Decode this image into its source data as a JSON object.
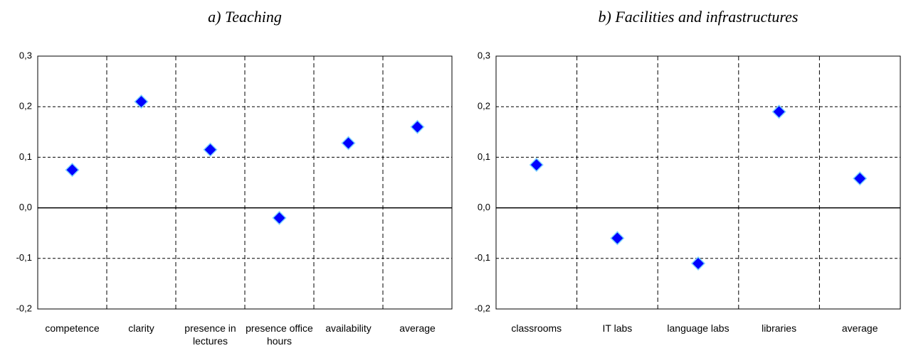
{
  "chart_data": [
    {
      "type": "scatter",
      "title": "a) Teaching",
      "categories": [
        "competence",
        "clarity",
        "presence in lectures",
        "presence office hours",
        "availability",
        "average"
      ],
      "values": [
        0.075,
        0.21,
        0.115,
        -0.02,
        0.128,
        0.16
      ],
      "color": "#0000ff",
      "ylim": [
        -0.2,
        0.3
      ],
      "yticks": [
        {
          "value": -0.2,
          "label": "-0,2"
        },
        {
          "value": -0.1,
          "label": "-0,1"
        },
        {
          "value": 0,
          "label": "0,0"
        },
        {
          "value": 0.1,
          "label": "0,1"
        },
        {
          "value": 0.2,
          "label": "0,2"
        },
        {
          "value": 0.3,
          "label": "0,3"
        }
      ],
      "grid": true
    },
    {
      "type": "scatter",
      "title": "b) Facilities and infrastructures",
      "categories": [
        "classrooms",
        "IT labs",
        "language labs",
        "libraries",
        "average"
      ],
      "values": [
        0.085,
        -0.06,
        -0.11,
        0.19,
        0.058
      ],
      "color": "#0000ff",
      "ylim": [
        -0.2,
        0.3
      ],
      "yticks": [
        {
          "value": -0.2,
          "label": "-0,2"
        },
        {
          "value": -0.1,
          "label": "-0,1"
        },
        {
          "value": 0,
          "label": "0,0"
        },
        {
          "value": 0.1,
          "label": "0,1"
        },
        {
          "value": 0.2,
          "label": "0,2"
        },
        {
          "value": 0.3,
          "label": "0,3"
        }
      ],
      "grid": true
    }
  ]
}
